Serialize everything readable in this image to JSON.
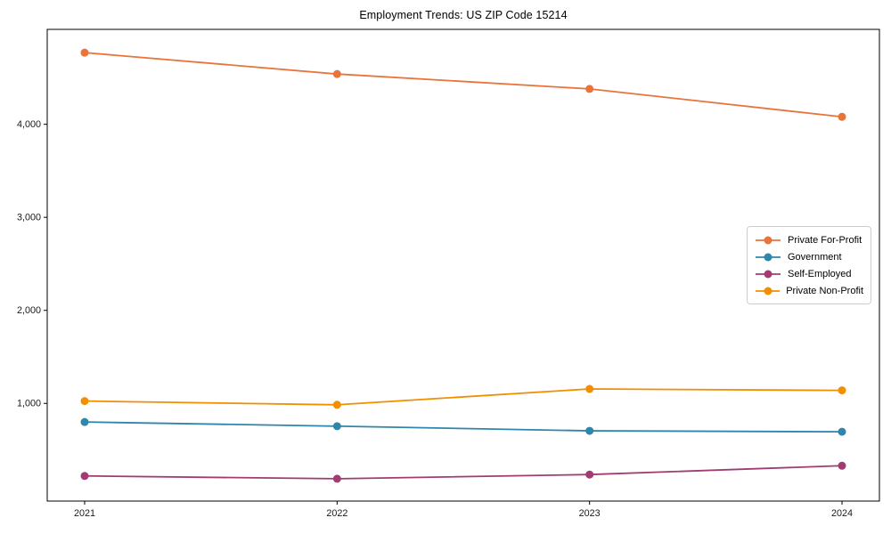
{
  "chart_data": {
    "type": "line",
    "title": "Employment Trends: US ZIP Code 15214",
    "xlabel": "",
    "ylabel": "",
    "x": [
      2021,
      2022,
      2023,
      2024
    ],
    "xtick_labels": [
      "2021",
      "2022",
      "2023",
      "2024"
    ],
    "yticks": [
      1000,
      2000,
      3000,
      4000
    ],
    "ytick_labels": [
      "1,000",
      "2,000",
      "3,000",
      "4,000"
    ],
    "ylim": [
      -50,
      5020
    ],
    "grid": false,
    "legend_position": "center right",
    "series": [
      {
        "name": "Private For-Profit",
        "color": "#E8743B",
        "values": [
          4770,
          4540,
          4380,
          4080
        ]
      },
      {
        "name": "Government",
        "color": "#2E86AB",
        "values": [
          800,
          755,
          705,
          695
        ]
      },
      {
        "name": "Self-Employed",
        "color": "#A23B72",
        "values": [
          220,
          190,
          235,
          330
        ]
      },
      {
        "name": "Private Non-Profit",
        "color": "#F18F01",
        "values": [
          1025,
          985,
          1155,
          1140
        ]
      }
    ],
    "axis_color": "#000000",
    "tick_label_color": "#1a1a1a"
  }
}
